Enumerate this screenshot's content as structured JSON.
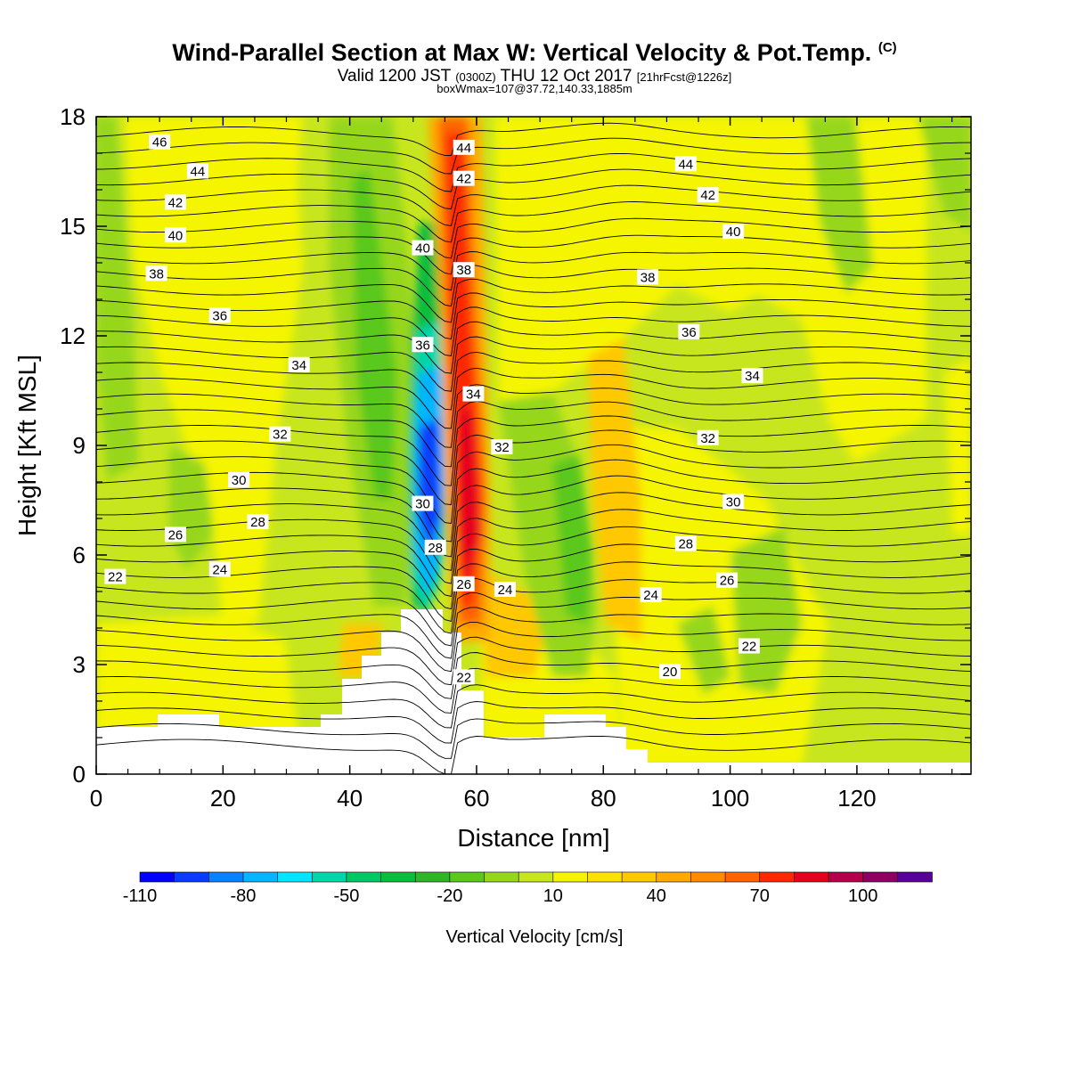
{
  "header": {
    "title": "Wind-Parallel Section at Max W: Vertical Velocity & Pot.Temp.",
    "copyright": "(C)",
    "valid_prefix": "Valid 1200 JST",
    "valid_utc": "(0300Z)",
    "valid_date": "THU 12 Oct 2017",
    "forecast": "[21hrFcst@1226z]",
    "boxw": "boxWmax=107@37.72,140.33,1885m"
  },
  "chart_data": {
    "type": "heatmap",
    "xlabel": "Distance [nm]",
    "ylabel": "Height [Kft MSL]",
    "xlim": [
      0,
      138
    ],
    "ylim": [
      0,
      18
    ],
    "x_ticks": [
      "0",
      "20",
      "40",
      "60",
      "80",
      "100",
      "120"
    ],
    "y_ticks": [
      "0",
      "3",
      "6",
      "9",
      "12",
      "15",
      "18"
    ],
    "colorbar": {
      "label": "Vertical Velocity [cm/s]",
      "tick_labels": [
        "-110",
        "-80",
        "-50",
        "-20",
        "10",
        "40",
        "70",
        "100"
      ],
      "colors": [
        "#0000ff",
        "#0a3cff",
        "#0a82ff",
        "#06b4ff",
        "#00e6ff",
        "#00d6aa",
        "#00c864",
        "#0abe3c",
        "#32b428",
        "#5ac81e",
        "#96d71e",
        "#c8e61e",
        "#f5f500",
        "#ffe100",
        "#ffc800",
        "#ffaa00",
        "#ff8c00",
        "#ff6400",
        "#ff2800",
        "#e6001e",
        "#b4004a",
        "#8c0064",
        "#5a0096"
      ]
    },
    "theta_labels": [
      {
        "x": 10,
        "y": 17.3,
        "t": "46"
      },
      {
        "x": 16,
        "y": 16.5,
        "t": "44"
      },
      {
        "x": 12.5,
        "y": 15.65,
        "t": "42"
      },
      {
        "x": 12.5,
        "y": 14.75,
        "t": "40"
      },
      {
        "x": 9.5,
        "y": 13.7,
        "t": "38"
      },
      {
        "x": 19.5,
        "y": 12.55,
        "t": "36"
      },
      {
        "x": 32,
        "y": 11.2,
        "t": "34"
      },
      {
        "x": 29,
        "y": 9.3,
        "t": "32"
      },
      {
        "x": 22.5,
        "y": 8.05,
        "t": "30"
      },
      {
        "x": 25.5,
        "y": 6.9,
        "t": "28"
      },
      {
        "x": 12.5,
        "y": 6.55,
        "t": "26"
      },
      {
        "x": 19.5,
        "y": 5.6,
        "t": "24"
      },
      {
        "x": 3,
        "y": 5.4,
        "t": "22"
      },
      {
        "x": 58,
        "y": 17.15,
        "t": "44"
      },
      {
        "x": 58,
        "y": 16.3,
        "t": "42"
      },
      {
        "x": 51.5,
        "y": 14.4,
        "t": "40"
      },
      {
        "x": 58,
        "y": 13.8,
        "t": "38"
      },
      {
        "x": 51.5,
        "y": 11.75,
        "t": "36"
      },
      {
        "x": 59.5,
        "y": 10.4,
        "t": "34"
      },
      {
        "x": 64,
        "y": 8.95,
        "t": "32"
      },
      {
        "x": 51.5,
        "y": 7.4,
        "t": "30"
      },
      {
        "x": 53.5,
        "y": 6.2,
        "t": "28"
      },
      {
        "x": 58,
        "y": 5.2,
        "t": "26"
      },
      {
        "x": 64.5,
        "y": 5.05,
        "t": "24"
      },
      {
        "x": 58,
        "y": 2.65,
        "t": "22"
      },
      {
        "x": 93,
        "y": 16.7,
        "t": "44"
      },
      {
        "x": 96.5,
        "y": 15.85,
        "t": "42"
      },
      {
        "x": 100.5,
        "y": 14.85,
        "t": "40"
      },
      {
        "x": 87,
        "y": 13.6,
        "t": "38"
      },
      {
        "x": 93.5,
        "y": 12.1,
        "t": "36"
      },
      {
        "x": 103.5,
        "y": 10.9,
        "t": "34"
      },
      {
        "x": 96.5,
        "y": 9.2,
        "t": "32"
      },
      {
        "x": 100.5,
        "y": 7.45,
        "t": "30"
      },
      {
        "x": 93,
        "y": 6.3,
        "t": "28"
      },
      {
        "x": 99.5,
        "y": 5.3,
        "t": "26"
      },
      {
        "x": 87.5,
        "y": 4.9,
        "t": "24"
      },
      {
        "x": 103,
        "y": 3.5,
        "t": "22"
      },
      {
        "x": 90.5,
        "y": 2.8,
        "t": "20"
      }
    ]
  }
}
